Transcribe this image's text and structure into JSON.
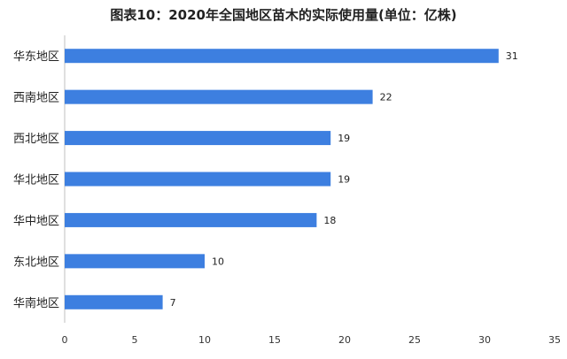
{
  "chart_data": {
    "type": "bar",
    "orientation": "horizontal",
    "title": "图表10：2020年全国地区苗木的实际使用量(单位：亿株)",
    "categories": [
      "华东地区",
      "西南地区",
      "西北地区",
      "华北地区",
      "华中地区",
      "东北地区",
      "华南地区"
    ],
    "values": [
      31,
      22,
      19,
      19,
      18,
      10,
      7
    ],
    "xlim": [
      0,
      35
    ],
    "xticks": [
      "0",
      "5",
      "10",
      "15",
      "20",
      "25",
      "30",
      "35"
    ],
    "grid": false,
    "legend": "none",
    "bar_color": "#3d7fe0"
  }
}
